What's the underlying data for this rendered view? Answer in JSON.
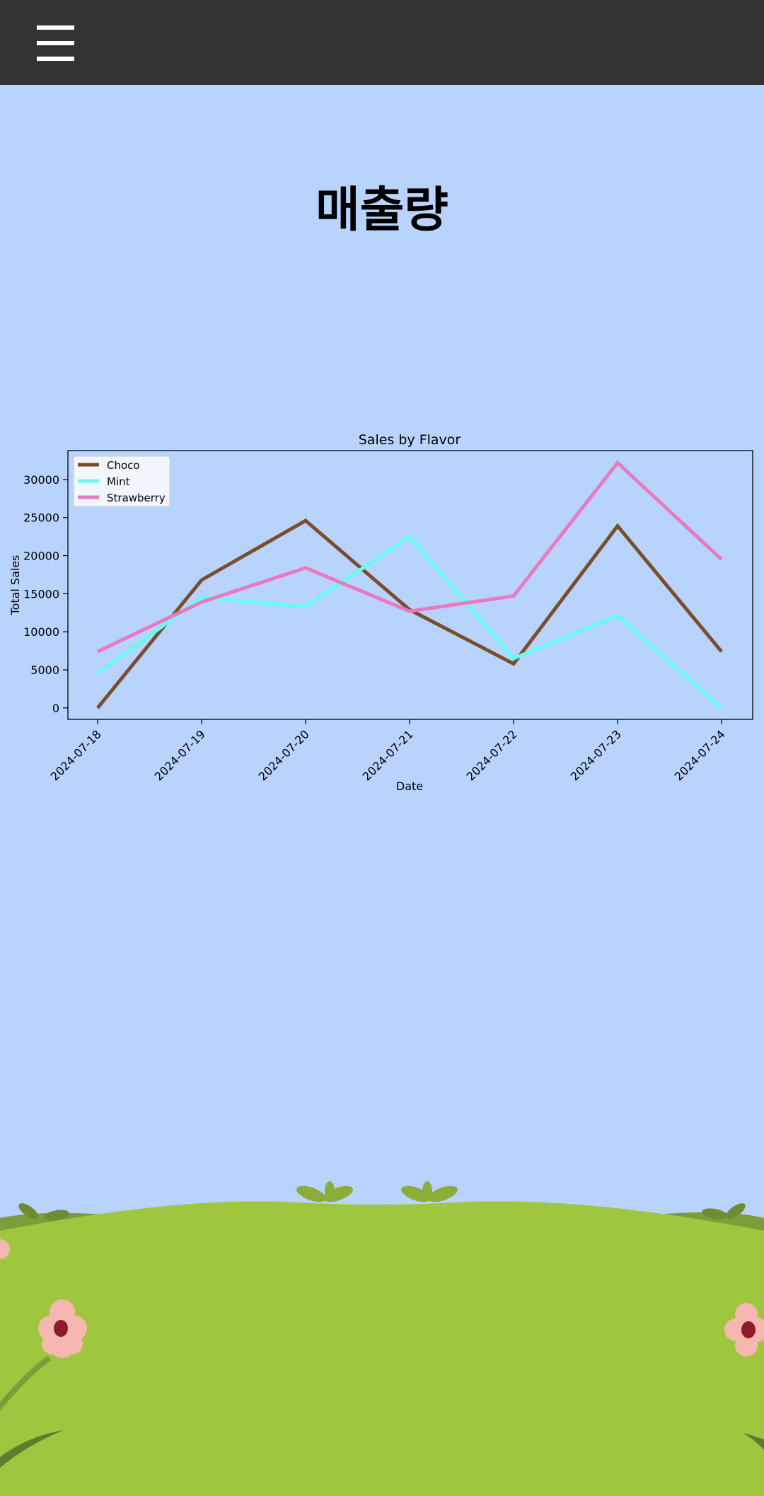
{
  "header": {
    "menu_icon": "hamburger-menu-icon"
  },
  "page": {
    "title": "매출량"
  },
  "colors": {
    "background": "#b8d3fc",
    "topbar": "#333333",
    "choco": "#7a4e2d",
    "mint": "#66fcf1",
    "strawberry": "#e87bbf",
    "grass": "#9fc63f",
    "grass_dark": "#7d9c3a",
    "flower": "#f6b7b1",
    "flower_center": "#8b1a2b"
  },
  "chart_data": {
    "type": "line",
    "title": "Sales by Flavor",
    "xlabel": "Date",
    "ylabel": "Total Sales",
    "categories": [
      "2024-07-18",
      "2024-07-19",
      "2024-07-20",
      "2024-07-21",
      "2024-07-22",
      "2024-07-23",
      "2024-07-24"
    ],
    "yticks": [
      "0",
      "5000",
      "10000",
      "15000",
      "20000",
      "25000",
      "30000"
    ],
    "ylim": [
      -1500,
      33800
    ],
    "grid": false,
    "legend_position": "upper-left",
    "series": [
      {
        "name": "Choco",
        "color": "#7a4e2d",
        "values": [
          0,
          16800,
          24600,
          12900,
          5800,
          23900,
          7400
        ]
      },
      {
        "name": "Mint",
        "color": "#66fcf1",
        "values": [
          4500,
          14500,
          13300,
          22500,
          6500,
          12100,
          0
        ]
      },
      {
        "name": "Strawberry",
        "color": "#e87bbf",
        "values": [
          7400,
          13900,
          18400,
          12700,
          14700,
          32200,
          19500
        ]
      }
    ]
  }
}
